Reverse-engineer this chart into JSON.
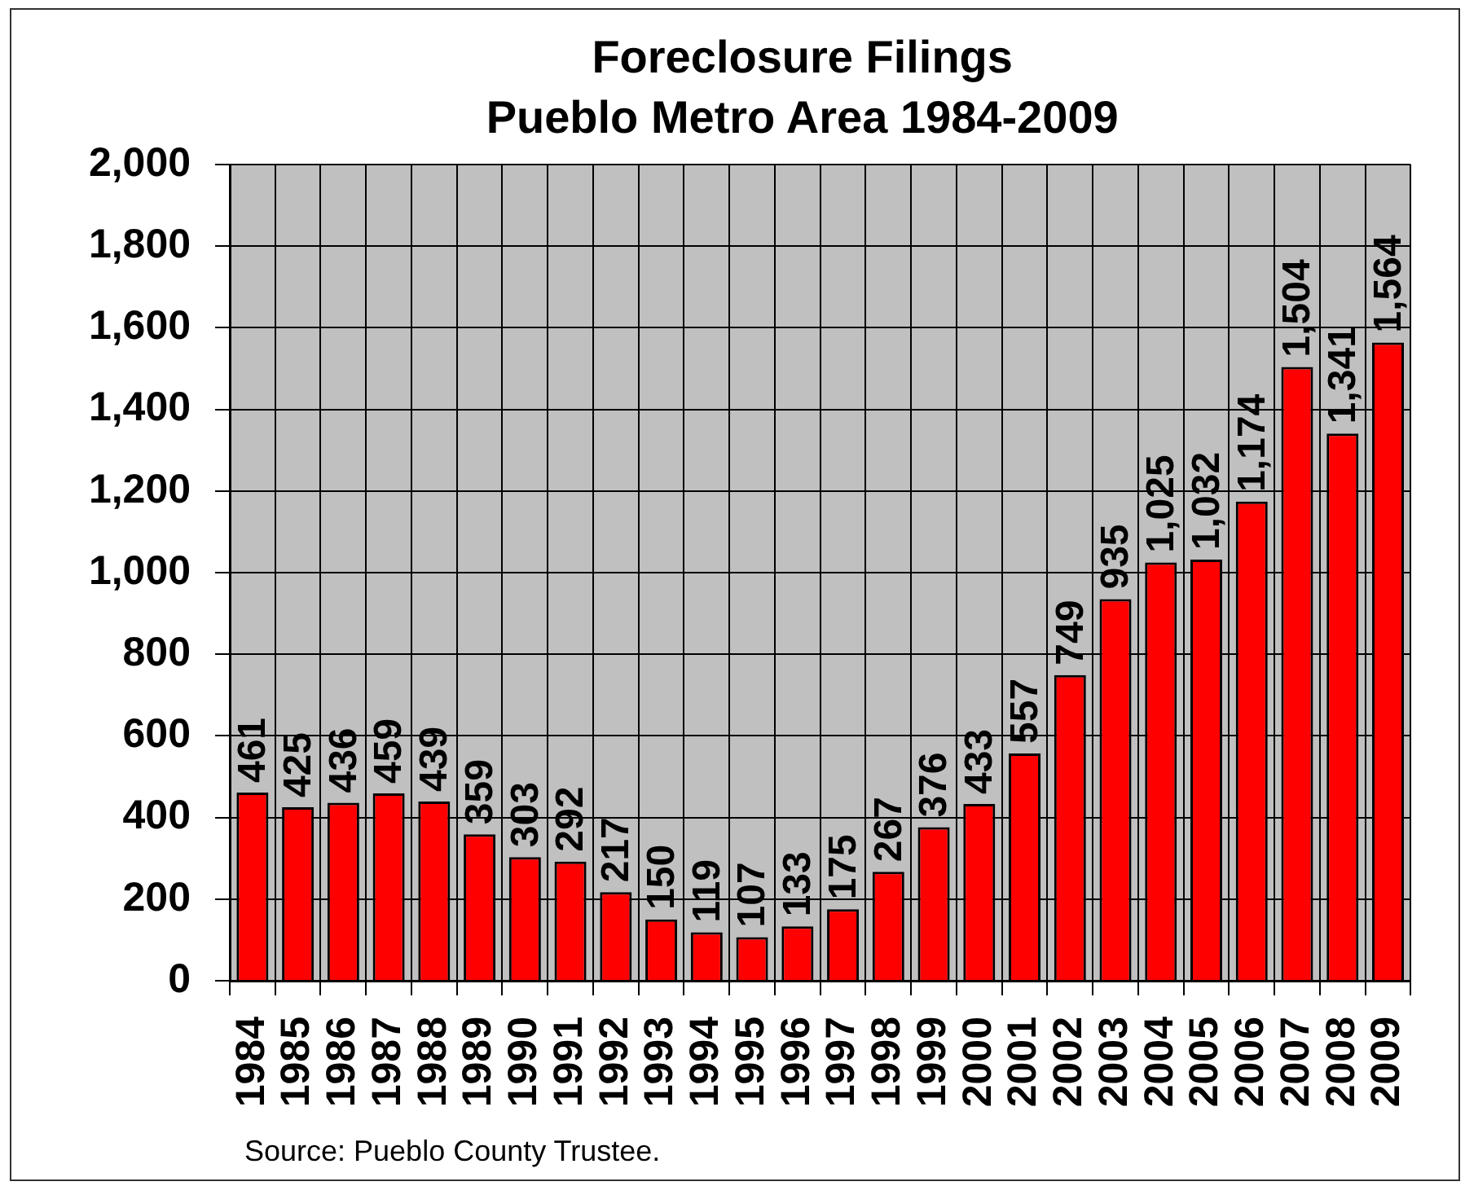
{
  "chart_data": {
    "type": "bar",
    "title": "Foreclosure Filings",
    "subtitle": "Pueblo Metro Area 1984-2009",
    "categories": [
      "1984",
      "1985",
      "1986",
      "1987",
      "1988",
      "1989",
      "1990",
      "1991",
      "1992",
      "1993",
      "1994",
      "1995",
      "1996",
      "1997",
      "1998",
      "1999",
      "2000",
      "2001",
      "2002",
      "2003",
      "2004",
      "2005",
      "2006",
      "2007",
      "2008",
      "2009"
    ],
    "values": [
      461,
      425,
      436,
      459,
      439,
      359,
      303,
      292,
      217,
      150,
      119,
      107,
      133,
      175,
      267,
      376,
      433,
      557,
      749,
      935,
      1025,
      1032,
      1174,
      1504,
      1341,
      1564
    ],
    "value_labels": [
      "461",
      "425",
      "436",
      "459",
      "439",
      "359",
      "303",
      "292",
      "217",
      "150",
      "119",
      "107",
      "133",
      "175",
      "267",
      "376",
      "433",
      "557",
      "749",
      "935",
      "1,025",
      "1,032",
      "1,174",
      "1,504",
      "1,341",
      "1,564"
    ],
    "color": "#ff0000",
    "ylim": [
      0,
      2000
    ],
    "yticks": [
      0,
      200,
      400,
      600,
      800,
      {
        "value": 1000,
        "label": "1,000"
      },
      {
        "value": 1200,
        "label": "1,200"
      },
      {
        "value": 1400,
        "label": "1,400"
      },
      {
        "value": 1600,
        "label": "1,600"
      },
      {
        "value": 1800,
        "label": "1,800"
      },
      {
        "value": 2000,
        "label": "2,000"
      }
    ],
    "grid": true,
    "annotations": [
      "Source: Pueblo County Trustee."
    ]
  }
}
